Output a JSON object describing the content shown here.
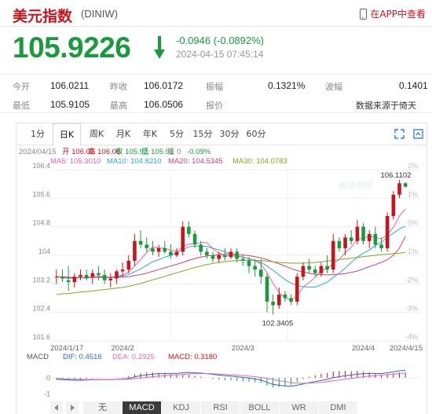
{
  "header": {
    "title": "美元指数",
    "code": "(DINIW)",
    "app_link": "在APP中查看"
  },
  "quote": {
    "price": "105.9226",
    "change": "-0.0946 (-0.0892%)",
    "timestamp": "2024-04-15 07:45:14",
    "direction": "down",
    "down_color": "#1a9a3c",
    "up_color": "#c4161c"
  },
  "stats": {
    "open_label": "今开",
    "open": "106.0211",
    "prev_close_label": "昨收",
    "prev_close": "106.0172",
    "amplitude_label": "振幅",
    "amplitude": "0.1321%",
    "range_label": "波幅",
    "range": "0.1401",
    "low_label": "最低",
    "low": "105.9105",
    "high_label": "最高",
    "high": "106.0506",
    "quote_label": "报价",
    "source": "数据来源于倚天"
  },
  "chart_tabs": [
    "1分",
    "日K",
    "周K",
    "月K",
    "年K",
    "5分",
    "15分",
    "30分",
    "60分"
  ],
  "active_chart_tab": "日K",
  "toolbar_icons": [
    "fullscreen-icon",
    "settings-icon"
  ],
  "info_bar": {
    "date": "2024/04/15",
    "open": "开 106.02",
    "high": "高 106.05",
    "close": "收 105.92",
    "low": "低 105.91",
    "vol": "量 0",
    "pct": "-0.09%"
  },
  "ma_legend": [
    {
      "label": "MA5: 105.3010",
      "color": "#f062a0"
    },
    {
      "label": "MA10: 104.8210",
      "color": "#2aa7d6"
    },
    {
      "label": "MA20: 104.5345",
      "color": "#d4436e"
    },
    {
      "label": "MA30: 104.0783",
      "color": "#8ca21e"
    }
  ],
  "macd_legend": {
    "name": "MACD",
    "dif": "DIF: 0.4516",
    "dea": "DEA: 0.2925",
    "macd": "MACD: 0.3180"
  },
  "watermark": "新浪财经",
  "indicator_tabs": [
    "无",
    "MACD",
    "KDJ",
    "RSI",
    "BOLL",
    "WR",
    "DMI"
  ],
  "active_indicator": "MACD",
  "chart_data": {
    "type": "candlestick",
    "title": "",
    "ylim": [
      101.6,
      106.4
    ],
    "y_ticks": [
      "106.4",
      "105.6",
      "104.8",
      "104",
      "103.2",
      "102.4",
      "101.6"
    ],
    "right_ticks": [
      "2%",
      "1%",
      "0%",
      "-1%",
      "-2%",
      "-3%",
      "-4%"
    ],
    "x_labels": [
      {
        "label": "2024/1/17",
        "index": 0
      },
      {
        "label": "2024/2",
        "index": 11
      },
      {
        "label": "2024/3",
        "index": 31
      },
      {
        "label": "2024/4",
        "index": 51
      },
      {
        "label": "2024/4/15",
        "index": 58
      }
    ],
    "annotations": [
      {
        "label": "106.1102",
        "index": 57,
        "value": 106.11
      },
      {
        "label": "102.3405",
        "index": 36,
        "value": 102.34
      }
    ],
    "candles": [
      [
        103.4,
        103.6,
        103.2,
        103.4
      ],
      [
        103.4,
        103.6,
        103.25,
        103.35
      ],
      [
        103.3,
        103.7,
        103.0,
        103.25
      ],
      [
        103.25,
        103.5,
        103.1,
        103.4
      ],
      [
        103.4,
        103.6,
        103.3,
        103.45
      ],
      [
        103.45,
        103.6,
        103.3,
        103.35
      ],
      [
        103.4,
        103.6,
        103.2,
        103.5
      ],
      [
        103.5,
        103.7,
        103.3,
        103.45
      ],
      [
        103.45,
        103.6,
        103.2,
        103.3
      ],
      [
        103.3,
        103.5,
        103.1,
        103.35
      ],
      [
        103.35,
        103.6,
        103.2,
        103.55
      ],
      [
        103.55,
        103.8,
        103.4,
        103.6
      ],
      [
        103.6,
        104.0,
        103.5,
        103.85
      ],
      [
        103.85,
        104.6,
        103.7,
        104.4
      ],
      [
        104.4,
        104.7,
        104.2,
        104.3
      ],
      [
        104.3,
        104.5,
        104.1,
        104.2
      ],
      [
        104.2,
        104.4,
        104.0,
        104.1
      ],
      [
        104.1,
        104.3,
        103.95,
        104.2
      ],
      [
        104.2,
        104.4,
        104.05,
        104.1
      ],
      [
        104.1,
        104.3,
        103.9,
        104.0
      ],
      [
        104.0,
        104.2,
        103.95,
        104.1
      ],
      [
        104.1,
        104.95,
        104.0,
        104.8
      ],
      [
        104.8,
        104.95,
        104.5,
        104.6
      ],
      [
        104.6,
        104.7,
        104.2,
        104.3
      ],
      [
        104.3,
        104.4,
        104.0,
        104.1
      ],
      [
        104.1,
        104.2,
        103.9,
        104.0
      ],
      [
        104.0,
        104.1,
        103.8,
        103.9
      ],
      [
        103.9,
        104.1,
        103.8,
        104.0
      ],
      [
        104.0,
        104.2,
        103.85,
        103.95
      ],
      [
        103.95,
        104.2,
        103.9,
        104.1
      ],
      [
        104.1,
        104.2,
        103.8,
        103.9
      ],
      [
        103.9,
        104.0,
        103.7,
        103.85
      ],
      [
        103.85,
        103.95,
        103.5,
        103.7
      ],
      [
        103.7,
        103.9,
        103.4,
        103.6
      ],
      [
        103.6,
        103.9,
        103.2,
        103.4
      ],
      [
        103.4,
        103.5,
        102.4,
        102.7
      ],
      [
        102.7,
        102.9,
        102.34,
        102.6
      ],
      [
        102.6,
        103.1,
        102.5,
        102.9
      ],
      [
        102.9,
        103.0,
        102.7,
        102.8
      ],
      [
        102.8,
        102.9,
        102.6,
        102.7
      ],
      [
        102.7,
        103.5,
        102.6,
        103.4
      ],
      [
        103.4,
        103.8,
        103.3,
        103.7
      ],
      [
        103.7,
        103.9,
        103.5,
        103.6
      ],
      [
        103.6,
        103.7,
        103.4,
        103.5
      ],
      [
        103.5,
        103.8,
        103.4,
        103.7
      ],
      [
        103.7,
        104.0,
        103.5,
        103.6
      ],
      [
        103.6,
        104.6,
        103.5,
        104.4
      ],
      [
        104.4,
        104.5,
        104.1,
        104.2
      ],
      [
        104.2,
        104.6,
        104.0,
        104.5
      ],
      [
        104.5,
        104.7,
        104.3,
        104.4
      ],
      [
        104.4,
        105.0,
        104.3,
        104.8
      ],
      [
        104.8,
        104.9,
        104.3,
        104.4
      ],
      [
        104.4,
        104.7,
        104.2,
        104.6
      ],
      [
        104.6,
        104.8,
        104.2,
        104.3
      ],
      [
        104.3,
        104.5,
        104.1,
        104.2
      ],
      [
        104.2,
        105.2,
        104.1,
        105.1
      ],
      [
        105.1,
        105.8,
        105.0,
        105.7
      ],
      [
        105.7,
        106.11,
        105.6,
        106.02
      ],
      [
        106.02,
        106.05,
        105.91,
        105.92
      ]
    ],
    "ma": [
      {
        "name": "MA5",
        "color": "#f062a0",
        "values": [
          103.4,
          103.38,
          103.35,
          103.37,
          103.38,
          103.38,
          103.4,
          103.42,
          103.4,
          103.38,
          103.4,
          103.45,
          103.52,
          103.7,
          103.88,
          104.08,
          104.24,
          104.2,
          104.2,
          104.14,
          104.12,
          104.24,
          104.32,
          104.32,
          104.36,
          104.36,
          104.18,
          104.06,
          103.99,
          103.99,
          103.97,
          103.95,
          103.91,
          103.85,
          103.75,
          103.51,
          103.22,
          102.96,
          102.81,
          102.74,
          102.88,
          103.1,
          103.24,
          103.38,
          103.59,
          103.62,
          103.77,
          103.88,
          104.08,
          104.22,
          104.45,
          104.48,
          104.54,
          104.5,
          104.46,
          104.58,
          104.78,
          105.1,
          105.3
        ]
      },
      {
        "name": "MA10",
        "color": "#2aa7d6",
        "values": [
          103.4,
          103.39,
          103.37,
          103.36,
          103.37,
          103.38,
          103.38,
          103.39,
          103.39,
          103.39,
          103.4,
          103.42,
          103.46,
          103.54,
          103.62,
          103.72,
          103.82,
          103.88,
          103.95,
          104.0,
          104.08,
          104.16,
          104.24,
          104.26,
          104.26,
          104.25,
          104.2,
          104.15,
          104.1,
          104.04,
          103.99,
          103.95,
          103.9,
          103.86,
          103.8,
          103.7,
          103.58,
          103.45,
          103.32,
          103.22,
          103.15,
          103.12,
          103.11,
          103.11,
          103.17,
          103.25,
          103.38,
          103.5,
          103.64,
          103.8,
          103.95,
          104.06,
          104.15,
          104.28,
          104.36,
          104.52,
          104.62,
          104.74,
          104.82
        ]
      },
      {
        "name": "MA20",
        "color": "#d4436e",
        "values": [
          103.4,
          103.4,
          103.39,
          103.38,
          103.38,
          103.38,
          103.38,
          103.38,
          103.38,
          103.38,
          103.38,
          103.39,
          103.4,
          103.43,
          103.46,
          103.5,
          103.55,
          103.6,
          103.65,
          103.7,
          103.75,
          103.8,
          103.86,
          103.91,
          103.95,
          103.98,
          104.0,
          104.02,
          104.03,
          104.03,
          104.02,
          104.01,
          103.99,
          103.96,
          103.93,
          103.88,
          103.82,
          103.76,
          103.7,
          103.63,
          103.57,
          103.53,
          103.5,
          103.47,
          103.46,
          103.45,
          103.46,
          103.47,
          103.49,
          103.52,
          103.56,
          103.62,
          103.68,
          103.74,
          103.8,
          103.88,
          104.0,
          104.2,
          104.53
        ]
      },
      {
        "name": "MA30",
        "color": "#8ca21e",
        "values": [
          102.9,
          102.92,
          102.93,
          102.95,
          102.97,
          102.98,
          103.0,
          103.02,
          103.04,
          103.06,
          103.08,
          103.1,
          103.13,
          103.17,
          103.21,
          103.26,
          103.31,
          103.36,
          103.41,
          103.46,
          103.51,
          103.56,
          103.61,
          103.66,
          103.7,
          103.74,
          103.77,
          103.8,
          103.82,
          103.84,
          103.85,
          103.86,
          103.86,
          103.86,
          103.85,
          103.84,
          103.82,
          103.8,
          103.79,
          103.78,
          103.78,
          103.78,
          103.79,
          103.8,
          103.82,
          103.84,
          103.86,
          103.88,
          103.9,
          103.92,
          103.94,
          103.96,
          103.98,
          104.0,
          104.02,
          104.03,
          104.05,
          104.06,
          104.08
        ]
      }
    ],
    "macd": {
      "ylim": [
        -1.3,
        0.9
      ],
      "y_ticks": [
        "0",
        "-1"
      ],
      "dif": [
        -0.1,
        -0.12,
        -0.14,
        -0.15,
        -0.15,
        -0.14,
        -0.13,
        -0.12,
        -0.12,
        -0.12,
        -0.1,
        -0.08,
        -0.04,
        0.05,
        0.12,
        0.18,
        0.22,
        0.25,
        0.26,
        0.26,
        0.26,
        0.3,
        0.32,
        0.3,
        0.28,
        0.25,
        0.2,
        0.16,
        0.12,
        0.1,
        0.06,
        0.02,
        -0.02,
        -0.08,
        -0.14,
        -0.28,
        -0.4,
        -0.46,
        -0.5,
        -0.52,
        -0.46,
        -0.38,
        -0.3,
        -0.24,
        -0.16,
        -0.1,
        0.0,
        0.06,
        0.12,
        0.16,
        0.22,
        0.24,
        0.26,
        0.26,
        0.25,
        0.3,
        0.36,
        0.42,
        0.45
      ],
      "dea": [
        -0.05,
        -0.06,
        -0.08,
        -0.09,
        -0.1,
        -0.11,
        -0.11,
        -0.11,
        -0.12,
        -0.12,
        -0.11,
        -0.1,
        -0.09,
        -0.06,
        -0.02,
        0.02,
        0.06,
        0.1,
        0.13,
        0.16,
        0.18,
        0.2,
        0.23,
        0.24,
        0.25,
        0.25,
        0.24,
        0.22,
        0.2,
        0.18,
        0.16,
        0.13,
        0.1,
        0.06,
        0.02,
        -0.04,
        -0.11,
        -0.18,
        -0.24,
        -0.3,
        -0.33,
        -0.34,
        -0.33,
        -0.31,
        -0.28,
        -0.24,
        -0.19,
        -0.14,
        -0.09,
        -0.04,
        0.01,
        0.06,
        0.1,
        0.13,
        0.16,
        0.19,
        0.22,
        0.26,
        0.29
      ],
      "hist": [
        -0.1,
        -0.12,
        -0.12,
        -0.12,
        -0.1,
        -0.06,
        -0.04,
        -0.02,
        0.0,
        0.0,
        0.02,
        0.04,
        0.1,
        0.22,
        0.28,
        0.32,
        0.32,
        0.3,
        0.26,
        0.2,
        0.16,
        0.2,
        0.18,
        0.12,
        0.06,
        0.0,
        -0.08,
        -0.12,
        -0.16,
        -0.16,
        -0.2,
        -0.22,
        -0.24,
        -0.28,
        -0.32,
        -0.48,
        -0.58,
        -0.56,
        -0.52,
        -0.44,
        -0.26,
        -0.08,
        0.06,
        0.14,
        0.24,
        0.28,
        0.38,
        0.4,
        0.42,
        0.4,
        0.42,
        0.36,
        0.32,
        0.26,
        0.18,
        0.22,
        0.28,
        0.32,
        0.32
      ]
    }
  }
}
